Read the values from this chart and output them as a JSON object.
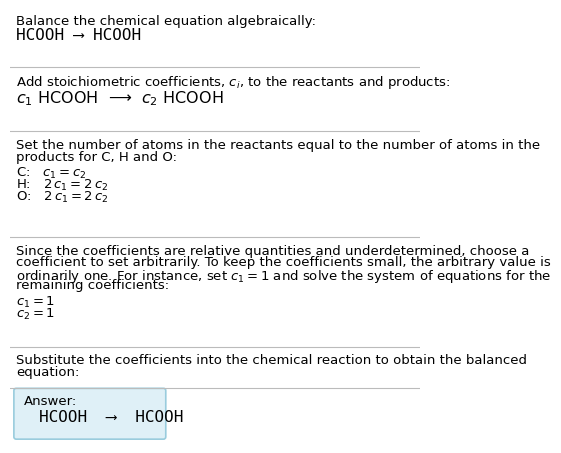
{
  "title_line1": "Balance the chemical equation algebraically:",
  "title_line2": "HCOOH ⟶ HCOOH",
  "section2_header": "Add stoichiometric coefficients, $c_i$, to the reactants and products:",
  "section2_eq": "$c_1$ HCOOH  ⟶  $c_2$ HCOOH",
  "section3_line1": "Set the number of atoms in the reactants equal to the number of atoms in the",
  "section3_line2": "products for C, H and O:",
  "section3_c": "C:   $c_1 = c_2$",
  "section3_h": "H:   $2\\,c_1 = 2\\,c_2$",
  "section3_o": "O:   $2\\,c_1 = 2\\,c_2$",
  "section4_line1": "Since the coefficients are relative quantities and underdetermined, choose a",
  "section4_line2": "coefficient to set arbitrarily. To keep the coefficients small, the arbitrary value is",
  "section4_line3": "ordinarily one. For instance, set $c_1 = 1$ and solve the system of equations for the",
  "section4_line4": "remaining coefficients:",
  "section4_c1": "$c_1 = 1$",
  "section4_c2": "$c_2 = 1$",
  "section5_line1": "Substitute the coefficients into the chemical reaction to obtain the balanced",
  "section5_line2": "equation:",
  "answer_label": "Answer:",
  "answer_eq": "HCOOH  ⟶  HCOOH",
  "bg_color": "#ffffff",
  "text_color": "#000000",
  "line_color": "#bbbbbb",
  "answer_box_facecolor": "#dff0f7",
  "answer_box_edgecolor": "#99ccdd"
}
